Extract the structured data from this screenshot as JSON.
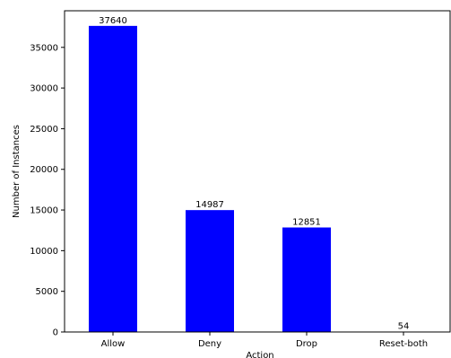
{
  "chart_data": {
    "type": "bar",
    "title": "",
    "xlabel": "Action",
    "ylabel": "Number of Instances",
    "categories": [
      "Allow",
      "Deny",
      "Drop",
      "Reset-both"
    ],
    "values": [
      37640,
      14987,
      12851,
      54
    ],
    "data_labels": [
      "37640",
      "14987",
      "12851",
      "54"
    ],
    "y_ticks": [
      0,
      5000,
      10000,
      15000,
      20000,
      25000,
      30000,
      35000
    ],
    "ylim": [
      0,
      39500
    ],
    "bar_color": "#0000ff",
    "grid": false,
    "legend": false
  }
}
